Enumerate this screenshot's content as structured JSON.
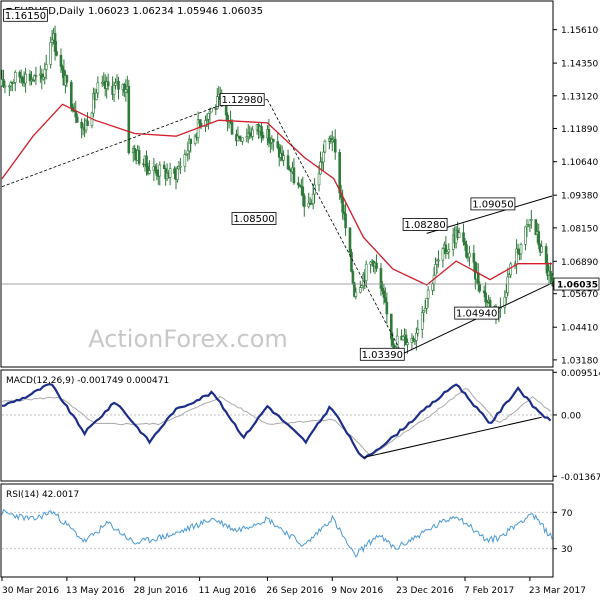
{
  "header": {
    "symbol_label": "EURUSD,Daily",
    "ohlc": "1.06023 1.06234 1.05946 1.06035"
  },
  "watermark": "ActionForex.com",
  "colors": {
    "background": "#ffffff",
    "grid": "#bbbbbb",
    "candle": "#2f7a3a",
    "ma": "#d31d2a",
    "macd": "#1c2d8a",
    "macd_signal": "#aaaaaa",
    "rsi": "#4a9ad8",
    "trend": "#000000",
    "price_line": "#888888"
  },
  "chart_data": [
    {
      "type": "line",
      "name": "price_panel",
      "title": "EURUSD,Daily",
      "subtitle": "1.06023 1.06234 1.05946 1.06035",
      "xlabel": "",
      "ylabel": "",
      "x_tick_labels": [
        "30 Mar 2016",
        "13 May 2016",
        "28 Jun 2016",
        "11 Aug 2016",
        "26 Sep 2016",
        "9 Nov 2016",
        "23 Dec 2016",
        "7 Feb 2017",
        "23 Mar 2017"
      ],
      "y_ticks": [
        1.1561,
        1.1435,
        1.1312,
        1.1189,
        1.1064,
        1.0938,
        1.0815,
        1.0689,
        1.0567,
        1.0441,
        1.0318
      ],
      "ylim": [
        1.0295,
        1.1665
      ],
      "current_price": 1.06035,
      "grid": false,
      "swing_labels": [
        {
          "label": "1.16150",
          "value": 1.1615
        },
        {
          "label": "1.12980",
          "value": 1.1298
        },
        {
          "label": "1.08500",
          "value": 1.085
        },
        {
          "label": "1.08280",
          "value": 1.0828
        },
        {
          "label": "1.09050",
          "value": 1.0905
        },
        {
          "label": "1.04940",
          "value": 1.0494
        },
        {
          "label": "1.03390",
          "value": 1.0339
        }
      ],
      "close_path": [
        [
          "2016-03-30",
          1.135
        ],
        [
          "2016-04-12",
          1.139
        ],
        [
          "2016-04-26",
          1.137
        ],
        [
          "2016-05-03",
          1.155
        ],
        [
          "2016-05-10",
          1.139
        ],
        [
          "2016-05-24",
          1.118
        ],
        [
          "2016-06-03",
          1.134
        ],
        [
          "2016-06-23",
          1.135
        ],
        [
          "2016-06-24",
          1.112
        ],
        [
          "2016-07-08",
          1.104
        ],
        [
          "2016-07-25",
          1.101
        ],
        [
          "2016-08-12",
          1.122
        ],
        [
          "2016-08-24",
          1.129
        ],
        [
          "2016-09-05",
          1.116
        ],
        [
          "2016-09-22",
          1.119
        ],
        [
          "2016-10-11",
          1.104
        ],
        [
          "2016-10-24",
          1.088
        ],
        [
          "2016-11-04",
          1.112
        ],
        [
          "2016-11-09",
          1.116
        ],
        [
          "2016-11-24",
          1.058
        ],
        [
          "2016-12-07",
          1.07
        ],
        [
          "2016-12-20",
          1.039
        ],
        [
          "2017-01-03",
          1.04
        ],
        [
          "2017-01-19",
          1.068
        ],
        [
          "2017-02-02",
          1.08
        ],
        [
          "2017-02-22",
          1.054
        ],
        [
          "2017-03-02",
          1.05
        ],
        [
          "2017-03-10",
          1.066
        ],
        [
          "2017-03-24",
          1.085
        ],
        [
          "2017-04-07",
          1.06
        ]
      ],
      "moving_average": [
        [
          "2016-03-30",
          1.1
        ],
        [
          "2016-04-20",
          1.116
        ],
        [
          "2016-05-10",
          1.128
        ],
        [
          "2016-06-01",
          1.122
        ],
        [
          "2016-06-28",
          1.117
        ],
        [
          "2016-07-26",
          1.116
        ],
        [
          "2016-08-24",
          1.122
        ],
        [
          "2016-09-26",
          1.121
        ],
        [
          "2016-10-21",
          1.108
        ],
        [
          "2016-11-10",
          1.1
        ],
        [
          "2016-11-30",
          1.078
        ],
        [
          "2016-12-20",
          1.066
        ],
        [
          "2017-01-12",
          1.06
        ],
        [
          "2017-02-01",
          1.069
        ],
        [
          "2017-02-24",
          1.062
        ],
        [
          "2017-03-15",
          1.068
        ],
        [
          "2017-04-07",
          1.068
        ]
      ],
      "trendlines": [
        {
          "from": [
            "2016-03-30",
            1.097
          ],
          "to": [
            "2016-08-22",
            1.127
          ]
        },
        {
          "from": [
            "2016-08-22",
            1.127
          ],
          "to": [
            "2016-09-26",
            1.1298
          ]
        },
        {
          "from": [
            "2016-09-26",
            1.1298
          ],
          "to": [
            "2016-12-26",
            1.0345
          ]
        },
        {
          "from": [
            "2016-12-26",
            1.0339
          ],
          "to": [
            "2017-04-07",
            1.0607
          ]
        },
        {
          "from": [
            "2017-01-12",
            1.0794
          ],
          "to": [
            "2017-04-07",
            1.0935
          ]
        }
      ]
    },
    {
      "type": "line",
      "name": "macd_panel",
      "title": "MACD(12,26,9) -0.001749 0.000471",
      "y_ticks": [
        0.009514,
        0.0,
        -0.013671
      ],
      "ylim": [
        -0.0145,
        0.0098
      ],
      "series": [
        {
          "role": "macd",
          "values": [
            [
              "2016-03-30",
              0.002
            ],
            [
              "2016-04-15",
              0.004
            ],
            [
              "2016-05-02",
              0.007
            ],
            [
              "2016-05-25",
              -0.004
            ],
            [
              "2016-06-15",
              0.003
            ],
            [
              "2016-07-08",
              -0.006
            ],
            [
              "2016-07-25",
              0.001
            ],
            [
              "2016-08-20",
              0.005
            ],
            [
              "2016-09-10",
              -0.005
            ],
            [
              "2016-09-26",
              0.002
            ],
            [
              "2016-10-22",
              -0.006
            ],
            [
              "2016-11-08",
              0.002
            ],
            [
              "2016-11-30",
              -0.01
            ],
            [
              "2016-12-20",
              -0.005
            ],
            [
              "2017-01-10",
              0.001
            ],
            [
              "2017-02-01",
              0.007
            ],
            [
              "2017-02-24",
              -0.002
            ],
            [
              "2017-03-15",
              0.006
            ],
            [
              "2017-03-25",
              0.002
            ],
            [
              "2017-04-07",
              -0.00175
            ]
          ]
        },
        {
          "role": "signal",
          "values": [
            [
              "2016-03-30",
              0.003
            ],
            [
              "2016-05-08",
              0.004
            ],
            [
              "2016-06-01",
              -0.002
            ],
            [
              "2016-07-15",
              -0.002
            ],
            [
              "2016-08-25",
              0.004
            ],
            [
              "2016-09-26",
              -0.002
            ],
            [
              "2016-11-10",
              -0.001
            ],
            [
              "2016-12-05",
              -0.009
            ],
            [
              "2017-01-15",
              0.0
            ],
            [
              "2017-02-08",
              0.006
            ],
            [
              "2017-03-02",
              -0.002
            ],
            [
              "2017-03-25",
              0.004
            ],
            [
              "2017-04-07",
              0.00047
            ]
          ]
        }
      ],
      "trendline": {
        "from": [
          "2016-11-30",
          -0.0095
        ],
        "to": [
          "2017-03-31",
          -0.0005
        ]
      }
    },
    {
      "type": "line",
      "name": "rsi_panel",
      "title": "RSI(14) 42.0017",
      "y_ticks": [
        70,
        30
      ],
      "ylim": [
        0,
        100
      ],
      "series": [
        {
          "role": "rsi",
          "values": [
            [
              "2016-03-30",
              70
            ],
            [
              "2016-04-20",
              62
            ],
            [
              "2016-05-03",
              71
            ],
            [
              "2016-05-25",
              38
            ],
            [
              "2016-06-10",
              58
            ],
            [
              "2016-06-28",
              36
            ],
            [
              "2016-07-25",
              46
            ],
            [
              "2016-08-20",
              63
            ],
            [
              "2016-09-05",
              50
            ],
            [
              "2016-09-26",
              63
            ],
            [
              "2016-10-21",
              33
            ],
            [
              "2016-11-09",
              64
            ],
            [
              "2016-11-24",
              22
            ],
            [
              "2016-12-10",
              45
            ],
            [
              "2016-12-22",
              30
            ],
            [
              "2017-01-10",
              48
            ],
            [
              "2017-02-01",
              67
            ],
            [
              "2017-02-22",
              39
            ],
            [
              "2017-03-02",
              42
            ],
            [
              "2017-03-24",
              69
            ],
            [
              "2017-04-07",
              42
            ]
          ]
        }
      ]
    }
  ]
}
